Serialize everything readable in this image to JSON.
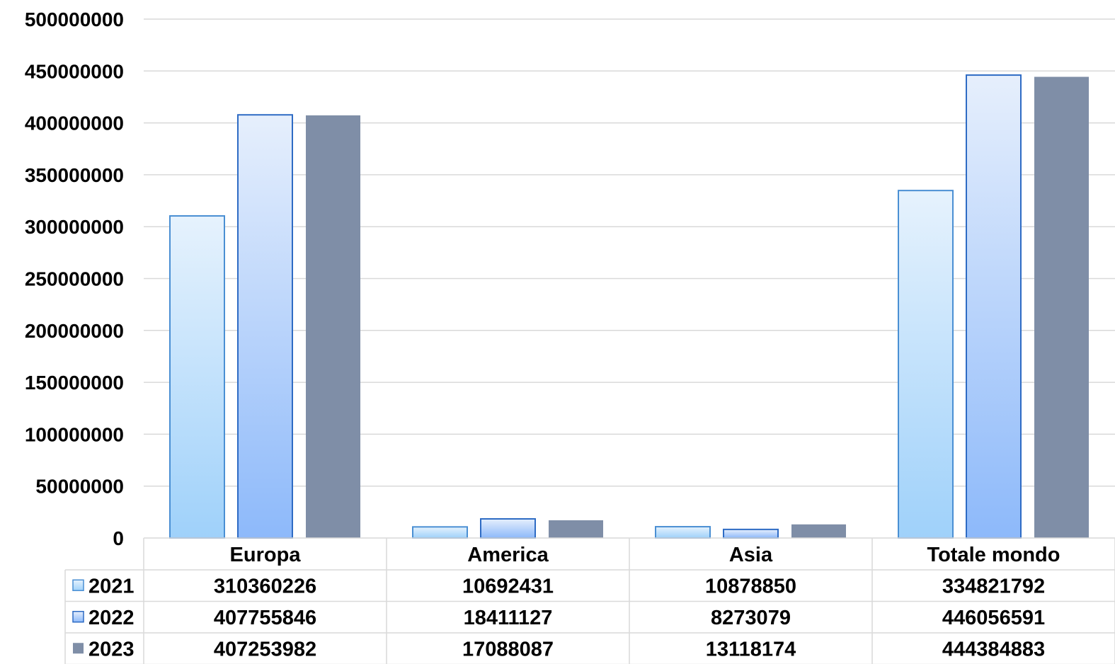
{
  "chart_data": {
    "type": "bar",
    "categories": [
      "Europa",
      "America",
      "Asia",
      "Totale mondo"
    ],
    "series": [
      {
        "name": "2021",
        "values": [
          310360226,
          10692431,
          10878850,
          334821792
        ],
        "value_labels": [
          "310360226",
          "10692431",
          "10878850",
          "334821792"
        ]
      },
      {
        "name": "2022",
        "values": [
          407755846,
          18411127,
          8273079,
          446056591
        ],
        "value_labels": [
          "407755846",
          "18411127",
          "8273079",
          "446056591"
        ]
      },
      {
        "name": "2023",
        "values": [
          407253982,
          17088087,
          13118174,
          444384883
        ],
        "value_labels": [
          "407253982",
          "17088087",
          "13118174",
          "444384883"
        ]
      }
    ],
    "y_ticks": [
      "0",
      "50000000",
      "100000000",
      "150000000",
      "200000000",
      "250000000",
      "300000000",
      "350000000",
      "400000000",
      "450000000",
      "500000000"
    ],
    "ylim": [
      0,
      500000000
    ],
    "grid": true,
    "legend": "data-table",
    "colors": {
      "2021": {
        "top": "#e6f2fd",
        "bottom": "#9fd1fa",
        "stroke": "#4a8fd3"
      },
      "2022": {
        "top": "#e6effc",
        "bottom": "#8db9fa",
        "stroke": "#2e6bc4"
      },
      "2023": {
        "fill": "#7f8ea7"
      }
    }
  }
}
